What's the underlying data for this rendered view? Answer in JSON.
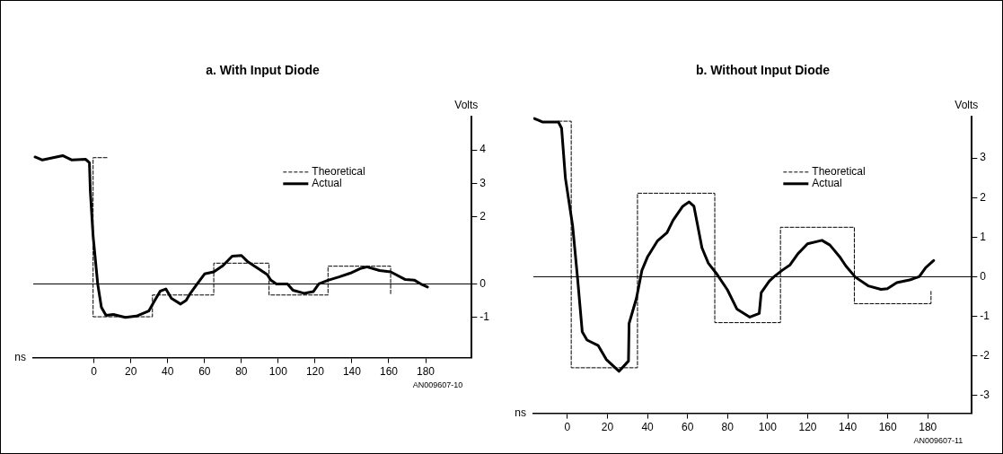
{
  "chart_data": [
    {
      "type": "line",
      "title": "a. With Input Diode",
      "xlabel": "ns",
      "ylabel": "Volts",
      "xlim": [
        -33,
        205
      ],
      "ylim": [
        -2.2,
        5
      ],
      "xticks": [
        0,
        20,
        40,
        60,
        80,
        100,
        120,
        140,
        160,
        180
      ],
      "yticks": [
        -1,
        0,
        2,
        3,
        4
      ],
      "grid": false,
      "legend": "top right",
      "marker": "none",
      "ref_lines": [
        {
          "axis": "y",
          "value": 0,
          "color": "#000000"
        }
      ],
      "annotations": [
        "AN009607-10"
      ],
      "series": [
        {
          "name": "Theoretical",
          "color": "#000000",
          "line_style": "dashed",
          "x": [
            7,
            -0.5,
            -0.5,
            31.7,
            31.7,
            65,
            65,
            95,
            95,
            127,
            127,
            161,
            161
          ],
          "values": [
            3.77,
            3.77,
            -0.98,
            -0.98,
            -0.33,
            -0.33,
            0.62,
            0.62,
            -0.33,
            -0.33,
            0.53,
            0.53,
            -0.33
          ]
        },
        {
          "name": "Actual",
          "color": "#000000",
          "line_style": "solid",
          "x": [
            -32,
            -28,
            -17,
            -12,
            -4.5,
            -2.5,
            -2,
            -0.5,
            2,
            4,
            6.5,
            10.5,
            17,
            23,
            29.7,
            33,
            36,
            39,
            42,
            47,
            50,
            51.8,
            56,
            60,
            65,
            70,
            75,
            80,
            83.5,
            90,
            94,
            96,
            99,
            105,
            108,
            114,
            119,
            122,
            127,
            133,
            139,
            145,
            148,
            155,
            161,
            169,
            174,
            178,
            181
          ],
          "values": [
            3.79,
            3.7,
            3.83,
            3.7,
            3.72,
            3.62,
            2.77,
            1.43,
            0,
            -0.7,
            -0.94,
            -0.91,
            -1,
            -0.96,
            -0.81,
            -0.49,
            -0.21,
            -0.15,
            -0.43,
            -0.6,
            -0.49,
            -0.32,
            0,
            0.3,
            0.36,
            0.55,
            0.83,
            0.85,
            0.66,
            0.43,
            0.28,
            0.11,
            0,
            0,
            -0.19,
            -0.28,
            -0.23,
            0,
            0.11,
            0.21,
            0.32,
            0.47,
            0.51,
            0.4,
            0.36,
            0.13,
            0.11,
            -0.02,
            -0.09
          ]
        }
      ]
    },
    {
      "type": "line",
      "title": "b. Without Input Diode",
      "xlabel": "ns",
      "ylabel": "Volts",
      "xlim": [
        -17,
        202
      ],
      "ylim": [
        -3.45,
        4.05
      ],
      "xticks": [
        0,
        20,
        40,
        60,
        80,
        100,
        120,
        140,
        160,
        180
      ],
      "yticks": [
        -3,
        -2,
        -1,
        0,
        1,
        2,
        3
      ],
      "grid": false,
      "legend": "top right",
      "marker": "none",
      "ref_lines": [
        {
          "axis": "y",
          "value": 0,
          "color": "#000000"
        }
      ],
      "annotations": [
        "AN009607-11"
      ],
      "series": [
        {
          "name": "Theoretical",
          "color": "#000000",
          "line_style": "dashed",
          "x": [
            -4.5,
            1.9,
            1.9,
            35,
            35,
            73.6,
            73.6,
            106.4,
            106.4,
            143.3,
            143.3,
            181.6,
            181.6
          ],
          "values": [
            3.93,
            3.93,
            -2.3,
            -2.3,
            2.11,
            2.11,
            -1.16,
            -1.16,
            1.25,
            1.25,
            -0.68,
            -0.68,
            -0.37
          ]
        },
        {
          "name": "Actual",
          "color": "#000000",
          "line_style": "solid",
          "x": [
            -16.5,
            -12.5,
            -4.5,
            -2.9,
            -1,
            2.6,
            5,
            7.4,
            9.8,
            15.4,
            19.4,
            25.8,
            30.5,
            30.8,
            34.5,
            37.2,
            40.1,
            44.9,
            49.7,
            52.8,
            57.6,
            60.8,
            63.2,
            67.2,
            70.4,
            74.3,
            79.9,
            84.7,
            91.1,
            95.8,
            96.8,
            100.8,
            103.2,
            107.2,
            111.2,
            115.1,
            119.9,
            127.1,
            131.1,
            135.9,
            139.1,
            143.8,
            150.2,
            156.6,
            159.8,
            164.5,
            170.9,
            175.7,
            178.9,
            182.9
          ],
          "values": [
            4,
            3.91,
            3.91,
            3.75,
            2.49,
            1.29,
            0,
            -1.39,
            -1.6,
            -1.74,
            -2.09,
            -2.39,
            -2.13,
            -1.18,
            -0.54,
            0.16,
            0.51,
            0.9,
            1.11,
            1.43,
            1.78,
            1.89,
            1.78,
            0.73,
            0.34,
            0.09,
            -0.33,
            -0.82,
            -1.02,
            -0.93,
            -0.4,
            -0.11,
            0,
            0.16,
            0.3,
            0.58,
            0.83,
            0.92,
            0.8,
            0.51,
            0.27,
            -0.01,
            -0.23,
            -0.32,
            -0.3,
            -0.15,
            -0.08,
            0,
            0.23,
            0.41
          ]
        }
      ]
    }
  ]
}
